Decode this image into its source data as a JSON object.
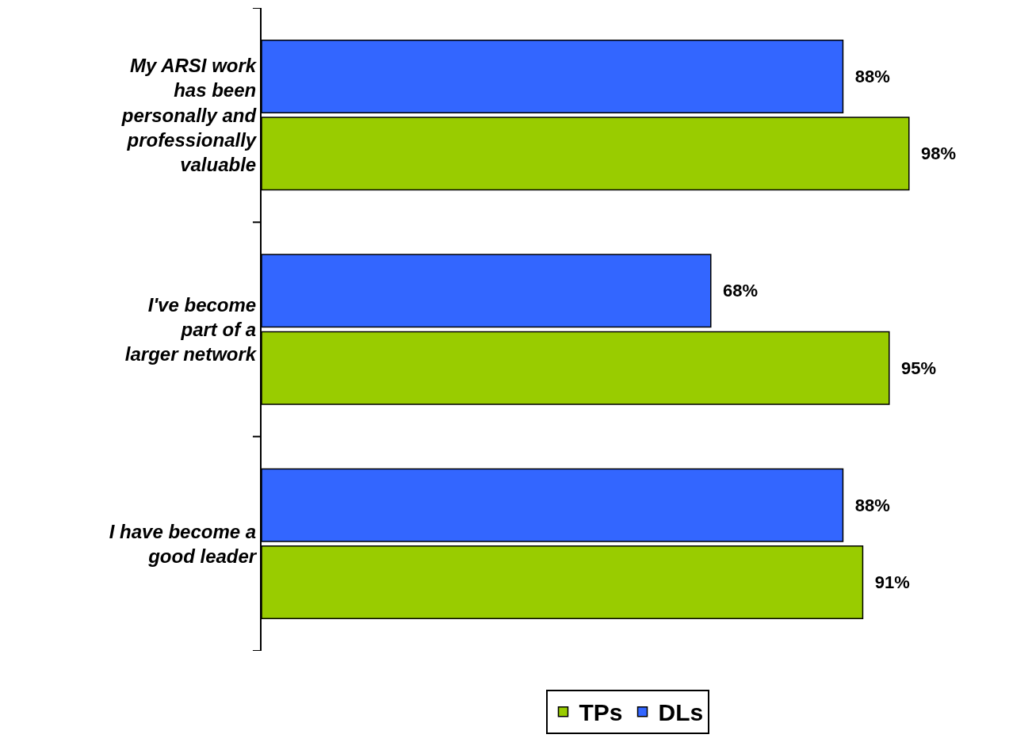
{
  "chart_data": {
    "type": "bar",
    "orientation": "horizontal",
    "legend": "bottom",
    "categories": [
      "My ARSI work has been personally and professionally valuable",
      "I've become part of a larger network",
      "I have become a good leader"
    ],
    "series": [
      {
        "name": "DLs",
        "color": "#3366ff",
        "values": [
          88,
          68,
          88
        ],
        "value_labels": [
          "88%",
          "68%",
          "88%"
        ]
      },
      {
        "name": "TPs",
        "color": "#99cc00",
        "values": [
          98,
          95,
          91
        ],
        "value_labels": [
          "98%",
          "95%",
          "91%"
        ]
      }
    ]
  }
}
